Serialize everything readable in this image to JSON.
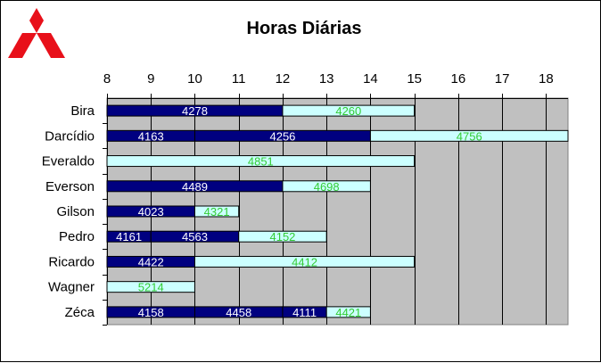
{
  "colors": {
    "plot_bg": "#c0c0c0",
    "dark_bar": "#000080",
    "light_bar": "#ccffff",
    "dark_label": "#ffffff",
    "light_label": "#33cc33",
    "logo": "#e8101a"
  },
  "logo": {
    "icon": "mitsubishi-logo-icon"
  },
  "chart_data": {
    "type": "bar",
    "orientation": "horizontal-stacked",
    "title": "Horas Diárias",
    "xlim": [
      8,
      18.5
    ],
    "xticks": [
      8,
      9,
      10,
      11,
      12,
      13,
      14,
      15,
      16,
      17,
      18
    ],
    "grid": "vertical",
    "x_axis_position": "top",
    "categories": [
      "Bira",
      "Darcídio",
      "Everaldo",
      "Everson",
      "Gilson",
      "Pedro",
      "Ricardo",
      "Wagner",
      "Zéca"
    ],
    "rows": [
      {
        "category": "Bira",
        "segments": [
          {
            "start": 8,
            "end": 12,
            "kind": "dark",
            "label": "4278"
          },
          {
            "start": 12,
            "end": 15,
            "kind": "light",
            "label": "4260"
          }
        ]
      },
      {
        "category": "Darcídio",
        "segments": [
          {
            "start": 8,
            "end": 10,
            "kind": "dark",
            "label": "4163"
          },
          {
            "start": 10,
            "end": 14,
            "kind": "dark",
            "label": "4256"
          },
          {
            "start": 14,
            "end": 18.5,
            "kind": "light",
            "label": "4756"
          }
        ]
      },
      {
        "category": "Everaldo",
        "segments": [
          {
            "start": 8,
            "end": 15,
            "kind": "light",
            "label": "4851"
          }
        ]
      },
      {
        "category": "Everson",
        "segments": [
          {
            "start": 8,
            "end": 12,
            "kind": "dark",
            "label": "4489"
          },
          {
            "start": 12,
            "end": 14,
            "kind": "light",
            "label": "4698"
          }
        ]
      },
      {
        "category": "Gilson",
        "segments": [
          {
            "start": 8,
            "end": 10,
            "kind": "dark",
            "label": "4023"
          },
          {
            "start": 10,
            "end": 11,
            "kind": "light",
            "label": "4321"
          }
        ]
      },
      {
        "category": "Pedro",
        "segments": [
          {
            "start": 8,
            "end": 9,
            "kind": "dark",
            "label": "4161"
          },
          {
            "start": 9,
            "end": 11,
            "kind": "dark",
            "label": "4563"
          },
          {
            "start": 11,
            "end": 13,
            "kind": "light",
            "label": "4152"
          }
        ]
      },
      {
        "category": "Ricardo",
        "segments": [
          {
            "start": 8,
            "end": 10,
            "kind": "dark",
            "label": "4422"
          },
          {
            "start": 10,
            "end": 15,
            "kind": "light",
            "label": "4412"
          }
        ]
      },
      {
        "category": "Wagner",
        "segments": [
          {
            "start": 8,
            "end": 10,
            "kind": "light",
            "label": "5214"
          }
        ]
      },
      {
        "category": "Zéca",
        "segments": [
          {
            "start": 8,
            "end": 10,
            "kind": "dark",
            "label": "4158"
          },
          {
            "start": 10,
            "end": 12,
            "kind": "dark",
            "label": "4458"
          },
          {
            "start": 12,
            "end": 13,
            "kind": "dark",
            "label": "4111"
          },
          {
            "start": 13,
            "end": 14,
            "kind": "light",
            "label": "4421"
          }
        ]
      }
    ]
  }
}
